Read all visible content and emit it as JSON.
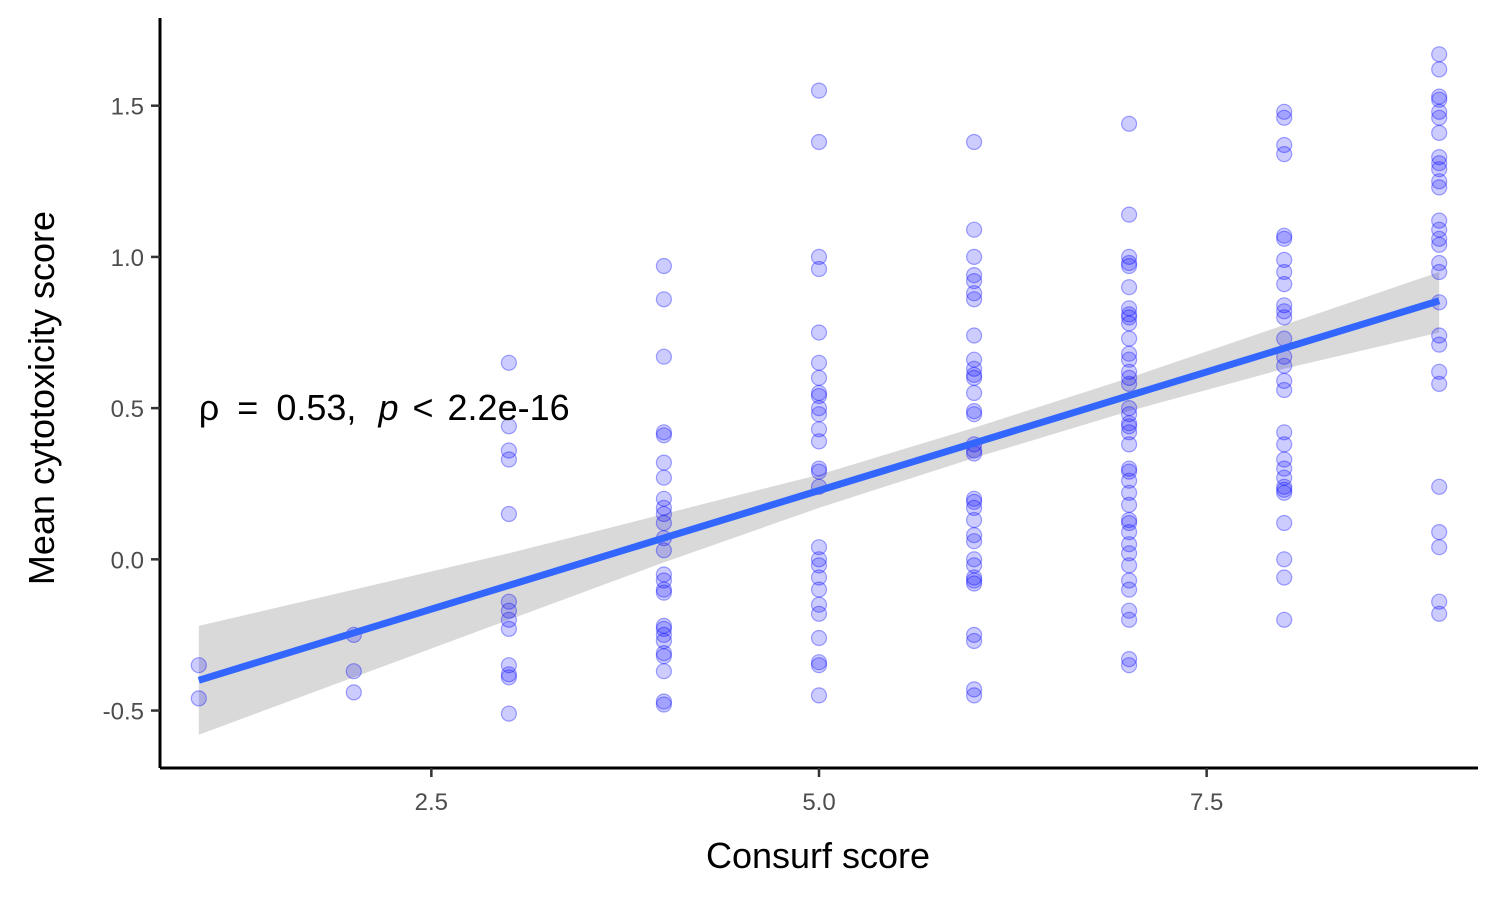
{
  "chart_data": {
    "type": "scatter",
    "title": "",
    "xlabel": "Consurf score",
    "ylabel": "Mean cytotoxicity score",
    "xlim": [
      0.75,
      9.25
    ],
    "ylim": [
      -0.69,
      1.79
    ],
    "x_ticks": [
      2.5,
      5.0,
      7.5
    ],
    "x_tick_labels": [
      "2.5",
      "5.0",
      "7.5"
    ],
    "y_ticks": [
      -0.5,
      0.0,
      0.5,
      1.0,
      1.5
    ],
    "y_tick_labels": [
      "-0.5",
      "0.0",
      "0.5",
      "1.0",
      "1.5"
    ],
    "grid": false,
    "legend": "none",
    "annotation": {
      "rho_symbol": "ρ",
      "equals": "=",
      "rho_value": "0.53,",
      "p_symbol": "p",
      "less_than": "<",
      "p_value": "2.2e-16",
      "x": 1.0,
      "y": 0.5
    },
    "point_color": "#0000ff",
    "point_alpha": 0.2,
    "trend": {
      "color": "#3366ff",
      "band_color": "#d9d9d9",
      "x": [
        1,
        2,
        3,
        4,
        5,
        6,
        7,
        8,
        9
      ],
      "fit": [
        -0.4,
        -0.245,
        -0.09,
        0.07,
        0.23,
        0.385,
        0.545,
        0.7,
        0.855
      ],
      "lower": [
        -0.58,
        -0.39,
        -0.2,
        -0.01,
        0.17,
        0.335,
        0.49,
        0.63,
        0.75
      ],
      "upper": [
        -0.22,
        -0.1,
        0.02,
        0.15,
        0.28,
        0.435,
        0.6,
        0.775,
        0.95
      ]
    },
    "series": [
      {
        "x": 1,
        "values": [
          -0.35,
          -0.46
        ]
      },
      {
        "x": 2,
        "values": [
          -0.25,
          -0.37,
          -0.44
        ]
      },
      {
        "x": 3,
        "values": [
          0.65,
          0.44,
          0.36,
          0.33,
          0.15,
          -0.14,
          -0.17,
          -0.2,
          -0.23,
          -0.35,
          -0.38,
          -0.39,
          -0.51
        ]
      },
      {
        "x": 4,
        "values": [
          0.97,
          0.86,
          0.67,
          0.42,
          0.41,
          0.32,
          0.27,
          0.2,
          0.17,
          0.15,
          0.12,
          0.07,
          0.03,
          -0.05,
          -0.07,
          -0.1,
          -0.11,
          -0.22,
          -0.23,
          -0.25,
          -0.27,
          -0.31,
          -0.32,
          -0.37,
          -0.47,
          -0.48
        ]
      },
      {
        "x": 5,
        "values": [
          1.55,
          1.38,
          1.0,
          0.96,
          0.75,
          0.65,
          0.6,
          0.55,
          0.54,
          0.5,
          0.48,
          0.43,
          0.39,
          0.3,
          0.29,
          0.24,
          0.04,
          0.0,
          -0.02,
          -0.06,
          -0.1,
          -0.15,
          -0.18,
          -0.26,
          -0.34,
          -0.35,
          -0.45
        ]
      },
      {
        "x": 6,
        "values": [
          1.38,
          1.09,
          1.0,
          0.94,
          0.92,
          0.88,
          0.86,
          0.74,
          0.66,
          0.63,
          0.61,
          0.6,
          0.55,
          0.49,
          0.48,
          0.38,
          0.36,
          0.35,
          0.2,
          0.19,
          0.17,
          0.13,
          0.08,
          0.06,
          0.0,
          -0.02,
          -0.06,
          -0.07,
          -0.08,
          -0.25,
          -0.27,
          -0.43,
          -0.45
        ]
      },
      {
        "x": 7,
        "values": [
          1.44,
          1.14,
          1.0,
          0.98,
          0.97,
          0.9,
          0.83,
          0.81,
          0.8,
          0.78,
          0.73,
          0.68,
          0.66,
          0.62,
          0.6,
          0.58,
          0.5,
          0.48,
          0.45,
          0.44,
          0.42,
          0.38,
          0.3,
          0.29,
          0.26,
          0.22,
          0.18,
          0.13,
          0.12,
          0.09,
          0.05,
          0.02,
          -0.02,
          -0.07,
          -0.1,
          -0.17,
          -0.2,
          -0.33,
          -0.35
        ]
      },
      {
        "x": 8,
        "values": [
          1.48,
          1.46,
          1.37,
          1.34,
          1.07,
          1.06,
          0.99,
          0.95,
          0.91,
          0.84,
          0.82,
          0.8,
          0.73,
          0.67,
          0.64,
          0.59,
          0.56,
          0.42,
          0.38,
          0.33,
          0.3,
          0.27,
          0.24,
          0.23,
          0.22,
          0.12,
          0.0,
          -0.06,
          -0.2
        ]
      },
      {
        "x": 9,
        "values": [
          1.67,
          1.62,
          1.53,
          1.52,
          1.48,
          1.46,
          1.41,
          1.33,
          1.31,
          1.29,
          1.25,
          1.23,
          1.12,
          1.09,
          1.06,
          1.04,
          0.98,
          0.95,
          0.85,
          0.74,
          0.71,
          0.62,
          0.58,
          0.24,
          0.09,
          0.04,
          -0.14,
          -0.18
        ]
      }
    ]
  }
}
